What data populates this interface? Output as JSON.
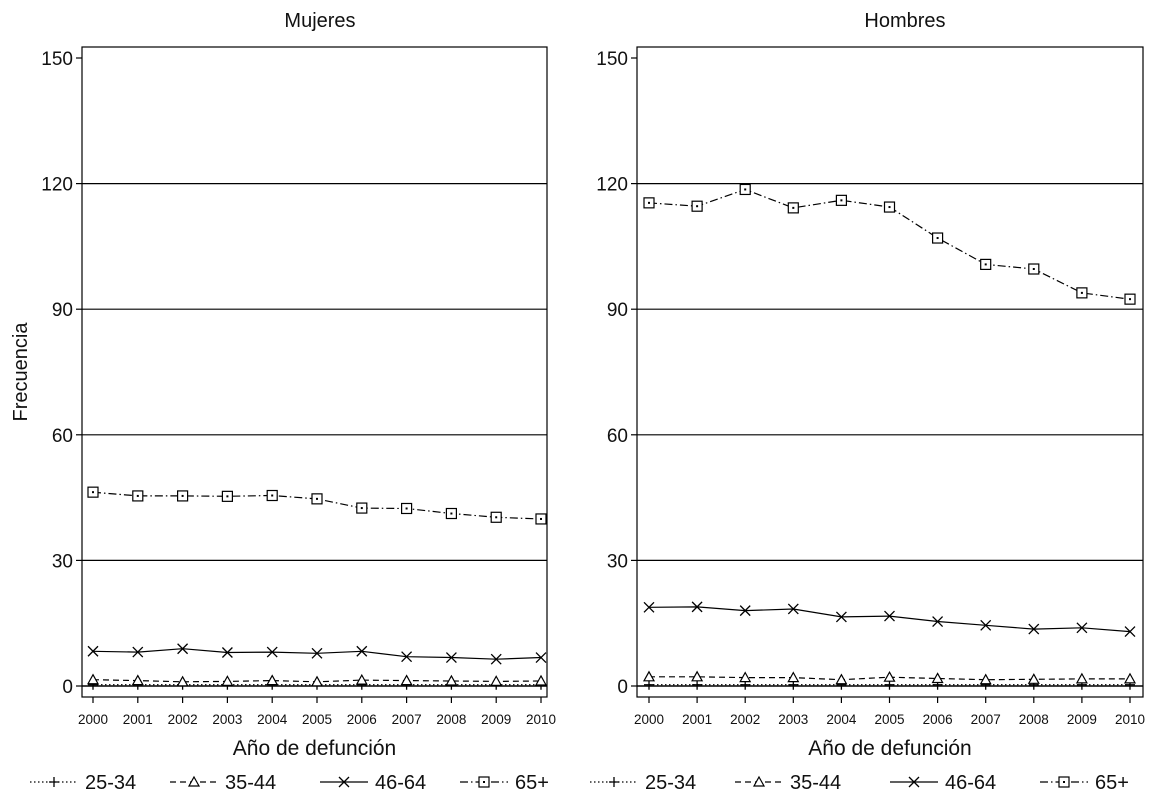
{
  "figure": {
    "ylabel": "Frecuencia",
    "xlabel": "Año de defunción"
  },
  "chart_data": [
    {
      "type": "line",
      "title": "Mujeres",
      "xlabel": "Año de defunción",
      "ylabel": "Frecuencia",
      "x": [
        2000,
        2001,
        2002,
        2003,
        2004,
        2005,
        2006,
        2007,
        2008,
        2009,
        2010
      ],
      "ylim": [
        0,
        150
      ],
      "yticks": [
        0,
        30,
        60,
        90,
        120,
        150
      ],
      "grid": true,
      "legend_position": "bottom",
      "series": [
        {
          "name": "25-34",
          "marker": "plus",
          "line": "dotted",
          "values": [
            0.3,
            0.3,
            0.3,
            0.3,
            0.3,
            0.3,
            0.3,
            0.3,
            0.3,
            0.3,
            0.3
          ]
        },
        {
          "name": "35-44",
          "marker": "triangle",
          "line": "dashed",
          "values": [
            1.5,
            1.3,
            1.0,
            1.1,
            1.3,
            1.0,
            1.4,
            1.3,
            1.2,
            1.1,
            1.2
          ]
        },
        {
          "name": "46-64",
          "marker": "x",
          "line": "solid",
          "values": [
            8.3,
            8.1,
            8.9,
            8.0,
            8.1,
            7.8,
            8.3,
            7.0,
            6.8,
            6.4,
            6.8
          ]
        },
        {
          "name": "65+",
          "marker": "square",
          "line": "dashdot",
          "values": [
            46.3,
            45.4,
            45.4,
            45.3,
            45.5,
            44.7,
            42.5,
            42.4,
            41.2,
            40.3,
            39.9
          ]
        }
      ]
    },
    {
      "type": "line",
      "title": "Hombres",
      "xlabel": "Año de defunción",
      "ylabel": "",
      "x": [
        2000,
        2001,
        2002,
        2003,
        2004,
        2005,
        2006,
        2007,
        2008,
        2009,
        2010
      ],
      "ylim": [
        0,
        150
      ],
      "yticks": [
        0,
        30,
        60,
        90,
        120,
        150
      ],
      "grid": true,
      "legend_position": "bottom",
      "series": [
        {
          "name": "25-34",
          "marker": "plus",
          "line": "dotted",
          "values": [
            0.3,
            0.3,
            0.3,
            0.3,
            0.3,
            0.3,
            0.3,
            0.3,
            0.3,
            0.3,
            0.3
          ]
        },
        {
          "name": "35-44",
          "marker": "triangle",
          "line": "dashed",
          "values": [
            2.2,
            2.2,
            2.0,
            2.0,
            1.5,
            2.1,
            1.8,
            1.5,
            1.6,
            1.7,
            1.7
          ]
        },
        {
          "name": "46-64",
          "marker": "x",
          "line": "solid",
          "values": [
            18.8,
            18.9,
            18.0,
            18.4,
            16.5,
            16.7,
            15.4,
            14.5,
            13.6,
            13.9,
            13.0
          ]
        },
        {
          "name": "65+",
          "marker": "square",
          "line": "dashdot",
          "values": [
            115.4,
            114.6,
            118.6,
            114.2,
            116.0,
            114.4,
            107.0,
            100.7,
            99.6,
            93.9,
            92.4
          ]
        }
      ]
    }
  ],
  "colors": {
    "ink": "#000000",
    "grid": "#000000",
    "background": "#ffffff"
  }
}
